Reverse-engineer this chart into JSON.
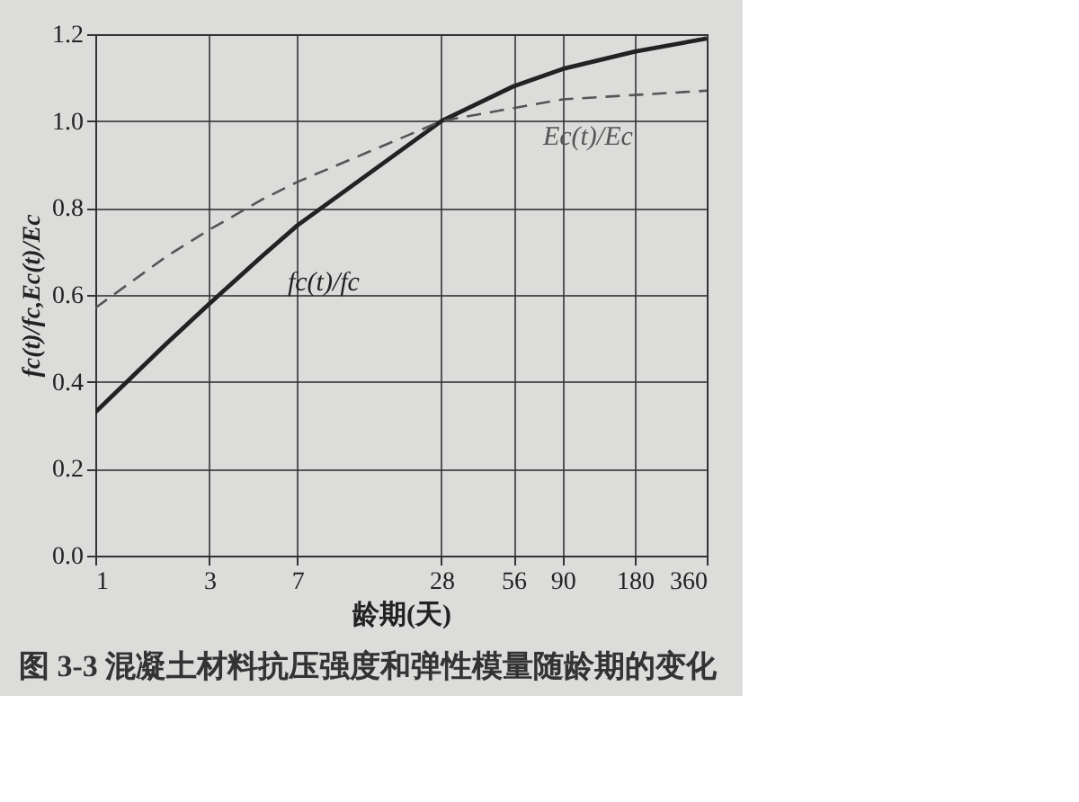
{
  "chart_data": {
    "type": "line",
    "title": "图 3-3  混凝土材料抗压强度和弹性模量随龄期的变化",
    "xlabel": "龄期(天)",
    "ylabel": "fc(t)/fc,Ec(t)/Ec",
    "x": [
      1,
      2,
      3,
      5,
      7,
      14,
      28,
      56,
      90,
      180,
      360
    ],
    "series": [
      {
        "name": "fc(t)/fc",
        "color": "#222222",
        "line_style": "solid",
        "values": [
          0.33,
          0.49,
          0.58,
          0.69,
          0.76,
          0.88,
          1.0,
          1.08,
          1.12,
          1.16,
          1.19
        ]
      },
      {
        "name": "Ec(t)/Ec",
        "color": "#555555",
        "line_style": "dashed",
        "values": [
          0.57,
          0.69,
          0.75,
          0.82,
          0.86,
          0.93,
          1.0,
          1.03,
          1.05,
          1.06,
          1.07
        ]
      }
    ],
    "log": "x",
    "xlim": [
      1,
      360
    ],
    "xticks": [
      1,
      3,
      7,
      28,
      56,
      90,
      180,
      360
    ],
    "ylim": [
      0,
      1.2
    ],
    "yticks": [
      {
        "value": 0,
        "label": "0.0"
      },
      {
        "value": 0.2,
        "label": "0.2"
      },
      {
        "value": 0.4,
        "label": "0.4"
      },
      {
        "value": 0.6,
        "label": "0.6"
      },
      {
        "value": 0.8,
        "label": "0.8"
      },
      {
        "value": 1.0,
        "label": "1.0"
      },
      {
        "value": 1.2,
        "label": "1.2"
      }
    ],
    "grid": true,
    "legend": false,
    "marker": "none"
  }
}
